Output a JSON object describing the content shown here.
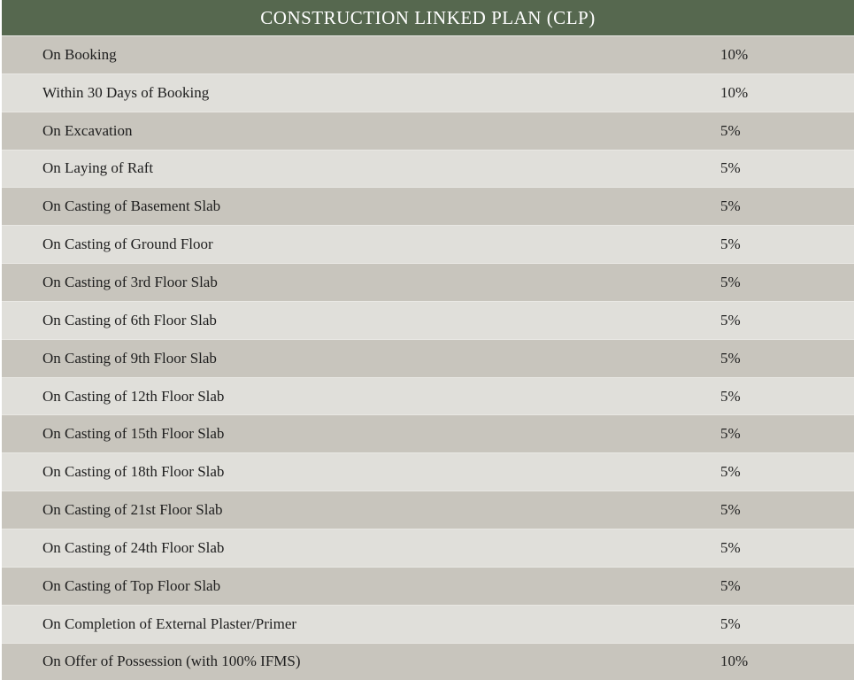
{
  "title": "CONSTRUCTION LINKED PLAN (CLP)",
  "rows": [
    {
      "stage": "On Booking",
      "percent": "10%"
    },
    {
      "stage": "Within 30 Days of Booking",
      "percent": "10%"
    },
    {
      "stage": "On Excavation",
      "percent": "5%"
    },
    {
      "stage": "On Laying of Raft",
      "percent": "5%"
    },
    {
      "stage": "On Casting of Basement Slab",
      "percent": "5%"
    },
    {
      "stage": "On Casting of Ground Floor",
      "percent": "5%"
    },
    {
      "stage": "On Casting of 3rd Floor Slab",
      "percent": "5%"
    },
    {
      "stage": "On Casting of 6th Floor Slab",
      "percent": "5%"
    },
    {
      "stage": "On Casting of 9th Floor Slab",
      "percent": "5%"
    },
    {
      "stage": "On Casting of 12th Floor Slab",
      "percent": "5%"
    },
    {
      "stage": "On Casting of 15th Floor Slab",
      "percent": "5%"
    },
    {
      "stage": "On Casting of 18th Floor Slab",
      "percent": "5%"
    },
    {
      "stage": "On Casting of 21st Floor Slab",
      "percent": "5%"
    },
    {
      "stage": "On Casting of 24th Floor Slab",
      "percent": "5%"
    },
    {
      "stage": "On Casting of Top Floor Slab",
      "percent": "5%"
    },
    {
      "stage": "On Completion of External Plaster/Primer",
      "percent": "5%"
    },
    {
      "stage": "On Offer of Possession (with 100% IFMS)",
      "percent": "10%"
    }
  ],
  "colors": {
    "header_bg": "#56684f",
    "header_text": "#ffffff",
    "row_odd": "#c8c5bd",
    "row_even": "#e0dfda",
    "text": "#1e1e1e"
  }
}
